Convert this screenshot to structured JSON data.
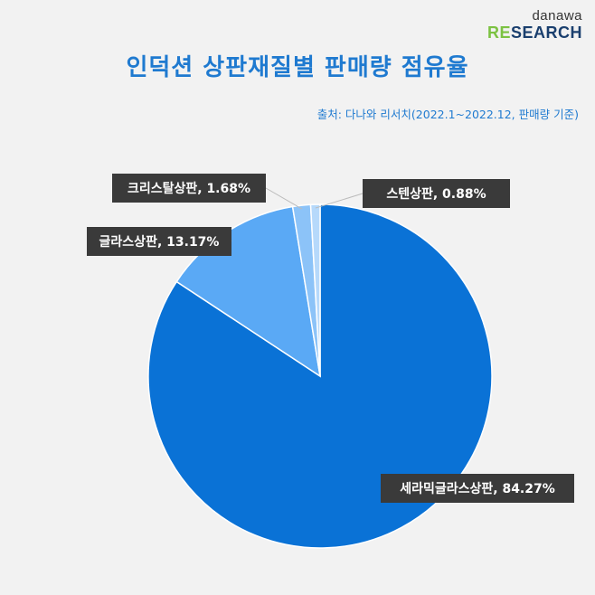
{
  "logo": {
    "line1": "danawa",
    "line2_accent": "RE",
    "line2_rest": "SEARCH"
  },
  "title": "인덕션 상판재질별 판매량 점유율",
  "source": "출처: 다나와 리서치(2022.1~2022.12,  판매량 기준)",
  "chart_data": {
    "type": "pie",
    "title": "인덕션 상판재질별 판매량 점유율",
    "start_angle_deg": 0,
    "direction": "clockwise",
    "slices": [
      {
        "name": "세라믹글라스상판",
        "value": 84.27,
        "label": "세라믹글라스상판,  84.27%",
        "color": "#0a72d6"
      },
      {
        "name": "글라스상판",
        "value": 13.17,
        "label": "글라스상판,  13.17%",
        "color": "#5aa9f5"
      },
      {
        "name": "크리스탈상판",
        "value": 1.68,
        "label": "크리스탈상판,  1.68%",
        "color": "#8cc3f8"
      },
      {
        "name": "스텐상판",
        "value": 0.88,
        "label": "스텐상판,  0.88%",
        "color": "#b6d9fb"
      }
    ],
    "legend": "none"
  }
}
